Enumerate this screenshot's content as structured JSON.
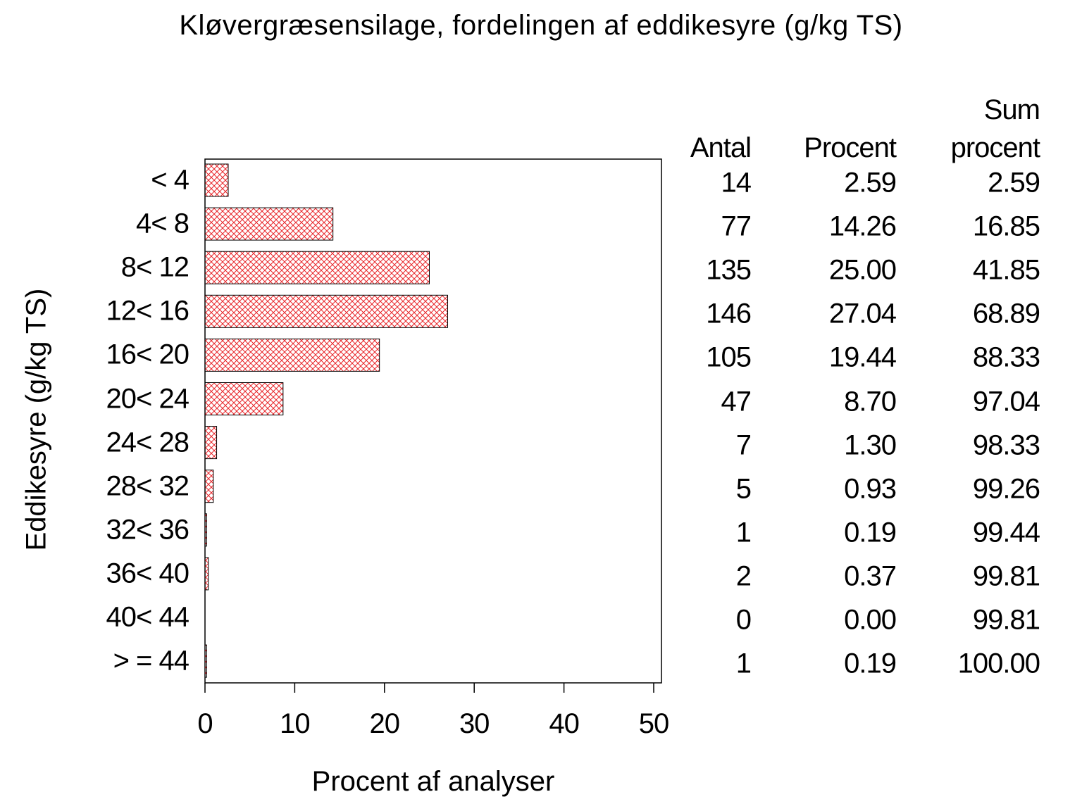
{
  "chart_data": {
    "type": "bar",
    "orientation": "horizontal",
    "title": "Kløvergræsensilage, fordelingen af eddikesyre (g/kg TS)",
    "xlabel": "Procent af analyser",
    "ylabel": "Eddikesyre (g/kg TS)",
    "xlim": [
      0,
      50
    ],
    "xticks": [
      "0",
      "10",
      "20",
      "30",
      "40",
      "50"
    ],
    "categories": [
      "< 4",
      "4< 8",
      "8< 12",
      "12< 16",
      "16< 20",
      "20< 24",
      "24< 28",
      "28< 32",
      "32< 36",
      "36< 40",
      "40< 44",
      "> = 44"
    ],
    "values": [
      2.59,
      14.26,
      25.0,
      27.04,
      19.44,
      8.7,
      1.3,
      0.93,
      0.19,
      0.37,
      0.0,
      0.19
    ],
    "bar_color": "#e8262a",
    "bar_pattern": "crosshatch",
    "grid": false,
    "table": {
      "headers": {
        "antal": "Antal",
        "procent": "Procent",
        "sum_line1": "Sum",
        "sum_line2": "procent"
      },
      "rows": [
        {
          "antal": "14",
          "procent": "2.59",
          "sum": "2.59"
        },
        {
          "antal": "77",
          "procent": "14.26",
          "sum": "16.85"
        },
        {
          "antal": "135",
          "procent": "25.00",
          "sum": "41.85"
        },
        {
          "antal": "146",
          "procent": "27.04",
          "sum": "68.89"
        },
        {
          "antal": "105",
          "procent": "19.44",
          "sum": "88.33"
        },
        {
          "antal": "47",
          "procent": "8.70",
          "sum": "97.04"
        },
        {
          "antal": "7",
          "procent": "1.30",
          "sum": "98.33"
        },
        {
          "antal": "5",
          "procent": "0.93",
          "sum": "99.26"
        },
        {
          "antal": "1",
          "procent": "0.19",
          "sum": "99.44"
        },
        {
          "antal": "2",
          "procent": "0.37",
          "sum": "99.81"
        },
        {
          "antal": "0",
          "procent": "0.00",
          "sum": "99.81"
        },
        {
          "antal": "1",
          "procent": "0.19",
          "sum": "100.00"
        }
      ]
    }
  }
}
